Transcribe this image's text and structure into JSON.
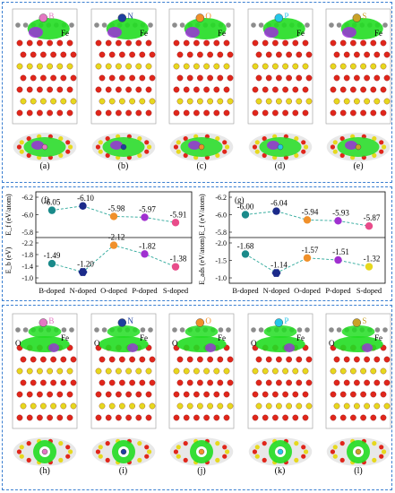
{
  "top_panel": {
    "cells": [
      {
        "label": "(a)",
        "dopant": "B",
        "fe": "Fe",
        "dopant_color": "#e377c2"
      },
      {
        "label": "(b)",
        "dopant": "N",
        "fe": "Fe",
        "dopant_color": "#1f3f9e"
      },
      {
        "label": "(c)",
        "dopant": "O",
        "fe": "Fe",
        "dopant_color": "#f0902a"
      },
      {
        "label": "(d)",
        "dopant": "P",
        "fe": "Fe",
        "dopant_color": "#25c6e8"
      },
      {
        "label": "(e)",
        "dopant": "S",
        "fe": "Fe",
        "dopant_color": "#c9a227"
      }
    ]
  },
  "bottom_panel": {
    "cells": [
      {
        "label": "(h)",
        "dopant": "B",
        "o": "O",
        "fe": "Fe",
        "dopant_color": "#e377c2"
      },
      {
        "label": "(i)",
        "dopant": "N",
        "o": "O",
        "fe": "Fe",
        "dopant_color": "#1f3f9e"
      },
      {
        "label": "(j)",
        "dopant": "O",
        "o": "O",
        "fe": "Fe",
        "dopant_color": "#f0902a"
      },
      {
        "label": "(k)",
        "dopant": "P",
        "o": "O",
        "fe": "Fe",
        "dopant_color": "#25c6e8"
      },
      {
        "label": "(l)",
        "dopant": "S",
        "o": "O",
        "fe": "Fe",
        "dopant_color": "#c9a227"
      }
    ]
  },
  "colors": {
    "iso_green": "#22dd22",
    "iso_purple": "#9b30d9",
    "atom_red": "#e0261b",
    "atom_yellow": "#e6d81e",
    "atom_grey": "#8c8c8c",
    "panel_border": "#3b7fd1",
    "fit_line": "#2ca89a"
  },
  "chart_data": [
    {
      "type": "line",
      "panel_label": "(f)",
      "categories": [
        "B-doped",
        "N-doped",
        "O-doped",
        "P-doped",
        "S-doped"
      ],
      "upper": {
        "ylabel": "E_f (eV/atom)",
        "ylim": [
          -6.2,
          -5.8
        ],
        "ticks": [
          -5.8,
          -6.0,
          -6.2
        ],
        "tick_labels": [
          "-5.8",
          "-6.0",
          "-6.2"
        ],
        "inverted": true,
        "values": [
          -6.05,
          -6.1,
          -5.98,
          -5.97,
          -5.91
        ],
        "value_labels": [
          "-6.05",
          "-6.10",
          "-5.98",
          "-5.97",
          "-5.91"
        ]
      },
      "lower": {
        "ylabel": "E_b (eV)",
        "ylim": [
          -2.2,
          -1.0
        ],
        "ticks": [
          -1.0,
          -1.4,
          -1.8,
          -2.2
        ],
        "tick_labels": [
          "-1.0",
          "-1.4",
          "-1.8",
          "-2.2"
        ],
        "inverted": true,
        "values": [
          -1.49,
          -1.2,
          -2.12,
          -1.82,
          -1.38
        ],
        "value_labels": [
          "-1.49",
          "-1.20",
          "-2.12",
          "-1.82",
          "-1.38"
        ]
      },
      "marker_colors": [
        "#1a8a8a",
        "#1b2a8a",
        "#f0902a",
        "#a030d0",
        "#e84c8a"
      ],
      "lower_marker_colors": [
        "#1a8a8a",
        "#1b2a8a",
        "#f0902a",
        "#a030d0",
        "#e84c8a"
      ]
    },
    {
      "type": "line",
      "panel_label": "(g)",
      "categories": [
        "B-doped",
        "N-doped",
        "O-doped",
        "P-doped",
        "S-doped"
      ],
      "upper": {
        "ylabel": "E_f (eV/atom)",
        "ylim": [
          -6.2,
          -5.8
        ],
        "ticks": [
          -5.8,
          -6.0,
          -6.2
        ],
        "tick_labels": [
          "-5.8",
          "-6.0",
          "-6.2"
        ],
        "inverted": true,
        "values": [
          -6.0,
          -6.04,
          -5.94,
          -5.93,
          -5.87
        ],
        "value_labels": [
          "-6.00",
          "-6.04",
          "-5.94",
          "-5.93",
          "-5.87"
        ]
      },
      "lower": {
        "ylabel": "E_ads (eV/atom)",
        "ylim": [
          -2.0,
          -1.0
        ],
        "ticks": [
          -1.0,
          -1.5,
          -2.0
        ],
        "tick_labels": [
          "-1.0",
          "-1.5",
          "-2.0"
        ],
        "inverted": true,
        "values": [
          -1.68,
          -1.14,
          -1.57,
          -1.51,
          -1.32
        ],
        "value_labels": [
          "-1.68",
          "-1.14",
          "-1.57",
          "-1.51",
          "-1.32"
        ]
      },
      "marker_colors": [
        "#1a8a8a",
        "#1b2a8a",
        "#f0902a",
        "#a030d0",
        "#e84c8a"
      ],
      "lower_marker_colors": [
        "#1a8a8a",
        "#1b2a8a",
        "#f0902a",
        "#a030d0",
        "#e6d81e"
      ]
    }
  ]
}
